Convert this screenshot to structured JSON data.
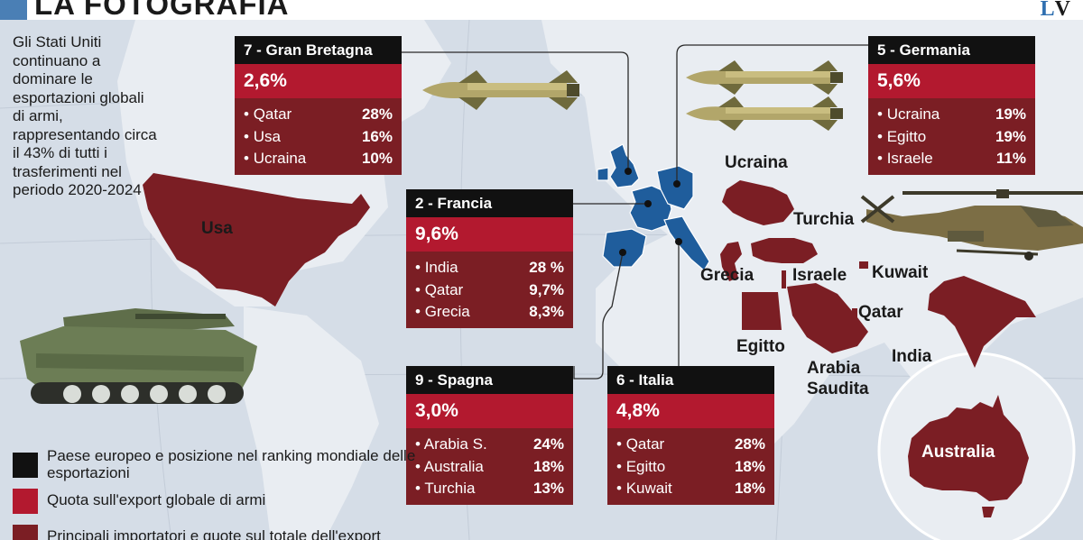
{
  "header": {
    "title": "LA FOTOGRAFIA",
    "logo_l": "L",
    "logo_v": "V"
  },
  "intro": "Gli Stati Uniti continuano a dominare le esportazioni globali di armi, rappresentando circa il 43% di tutti i trasferimenti nel periodo 2020-2024",
  "map_labels": {
    "usa": "Usa",
    "ucraina": "Ucraina",
    "turchia": "Turchia",
    "grecia": "Grecia",
    "israele": "Israele",
    "kuwait": "Kuwait",
    "qatar": "Qatar",
    "egitto": "Egitto",
    "arabia": "Arabia Saudita",
    "india": "India",
    "australia": "Australia"
  },
  "cards": {
    "uk": {
      "head": "7 - Gran Bretagna",
      "share": "2,6%",
      "items": [
        {
          "name": "Qatar",
          "pct": "28%"
        },
        {
          "name": "Usa",
          "pct": "16%"
        },
        {
          "name": "Ucraina",
          "pct": "10%"
        }
      ]
    },
    "fr": {
      "head": "2 - Francia",
      "share": "9,6%",
      "items": [
        {
          "name": "India",
          "pct": "28 %"
        },
        {
          "name": "Qatar",
          "pct": "9,7%"
        },
        {
          "name": "Grecia",
          "pct": "8,3%"
        }
      ]
    },
    "es": {
      "head": "9 - Spagna",
      "share": "3,0%",
      "items": [
        {
          "name": "Arabia S.",
          "pct": "24%"
        },
        {
          "name": "Australia",
          "pct": "18%"
        },
        {
          "name": "Turchia",
          "pct": "13%"
        }
      ]
    },
    "it": {
      "head": "6 - Italia",
      "share": "4,8%",
      "items": [
        {
          "name": "Qatar",
          "pct": "28%"
        },
        {
          "name": "Egitto",
          "pct": "18%"
        },
        {
          "name": "Kuwait",
          "pct": "18%"
        }
      ]
    },
    "de": {
      "head": "5 - Germania",
      "share": "5,6%",
      "items": [
        {
          "name": "Ucraina",
          "pct": "19%"
        },
        {
          "name": "Egitto",
          "pct": "19%"
        },
        {
          "name": "Israele",
          "pct": "11%"
        }
      ]
    }
  },
  "legend": {
    "rank": "Paese europeo e posizione nel ranking mondiale delle esportazioni",
    "share": "Quota sull'export globale di armi",
    "importers": "Principali importatori e quote sul totale dell'export"
  },
  "colors": {
    "ocean": "#d5dde7",
    "land": "#e9edf2",
    "importer": "#7b1e24",
    "share": "#b3192f",
    "rank": "#111111",
    "exporter": "#1f5d9c"
  },
  "icons": [
    "missile-icon",
    "tank-icon",
    "helicopter-icon"
  ]
}
